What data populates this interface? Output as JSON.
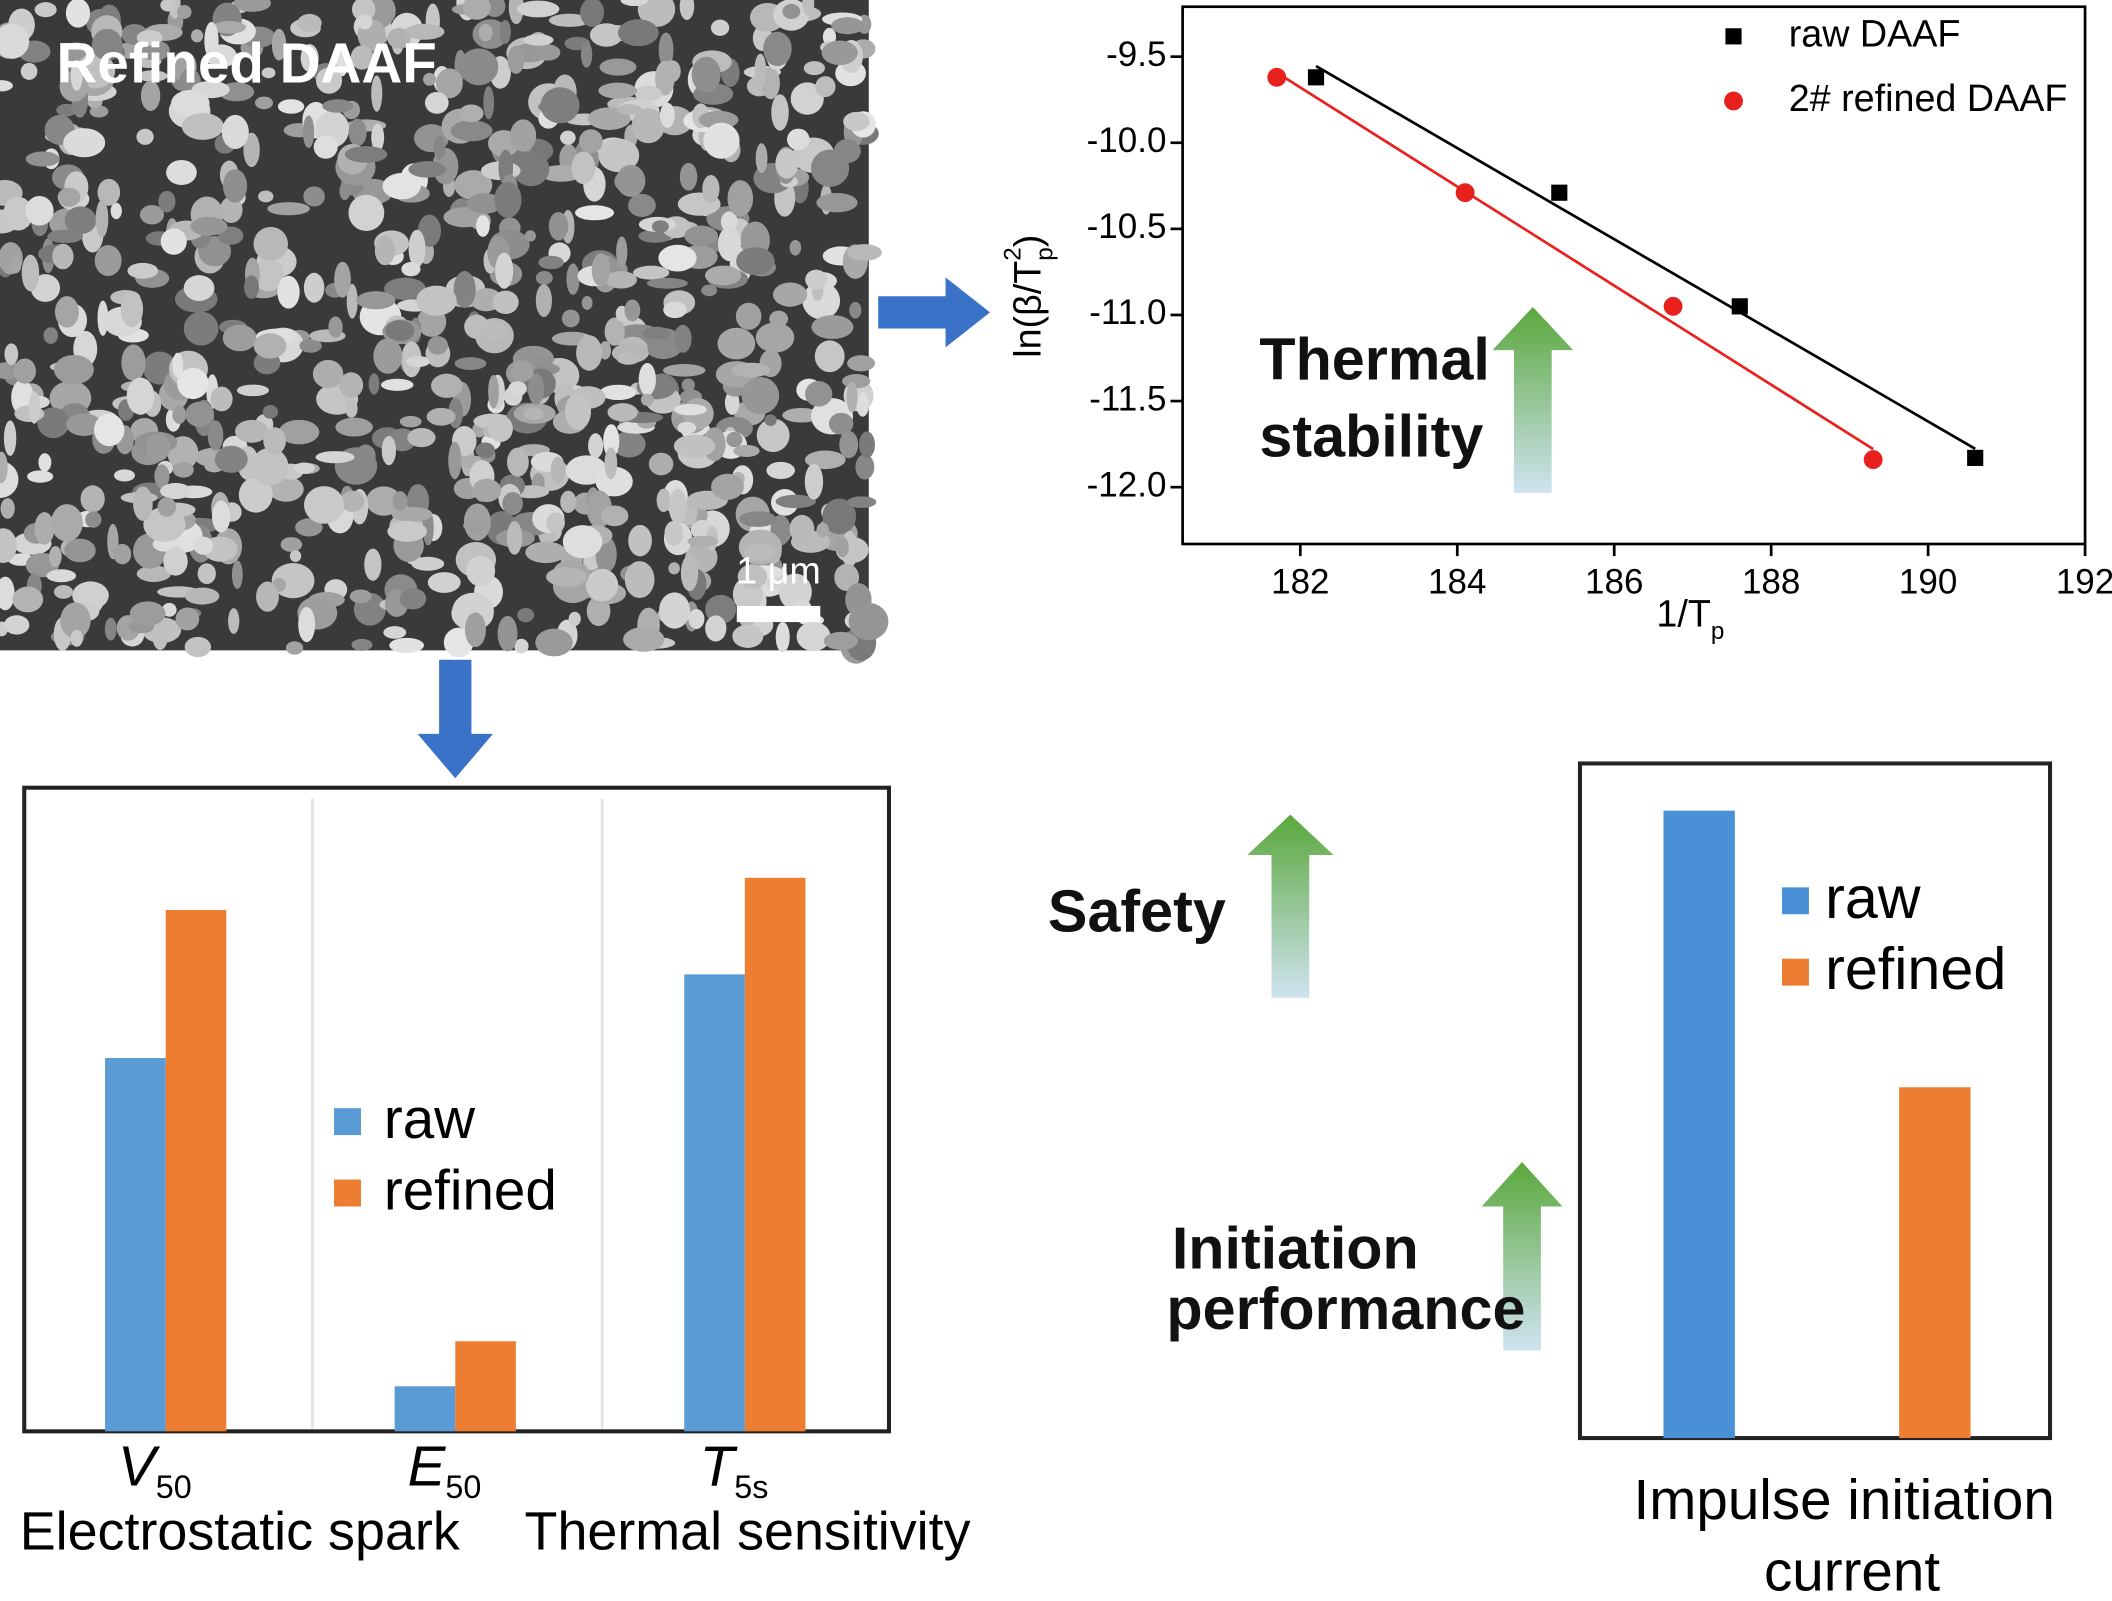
{
  "sem_image": {
    "label": "Refined DAAF",
    "scale_bar": "1 μm"
  },
  "annotations": {
    "thermal": "Thermal stability",
    "safety": "Safety",
    "initiation": "Initiation performance"
  },
  "chart_data": [
    {
      "type": "scatter",
      "fit": "linear",
      "xlabel": {
        "text": "1/T",
        "sub": "p"
      },
      "ylabel": {
        "text": "ln(β/T",
        "sup": "2",
        "sub": "p",
        "close": ")"
      },
      "xlim": [
        180.5,
        192
      ],
      "xticks": [
        182,
        184,
        186,
        188,
        190,
        192
      ],
      "ylim": [
        -12.33,
        -9.21
      ],
      "yticks": [
        -9.5,
        {
          "value": -10,
          "label": "-10.0"
        },
        -10.5,
        {
          "value": -11,
          "label": "-11.0"
        },
        -11.5,
        {
          "value": -12,
          "label": "-12.0"
        }
      ],
      "legend": "upper right",
      "series": [
        {
          "name": "raw DAAF",
          "color": "#000000",
          "marker": "square",
          "x": [
            182.2,
            185.3,
            187.6,
            190.6
          ],
          "values": [
            -9.62,
            -10.29,
            -10.95,
            -11.83
          ]
        },
        {
          "name": "2# refined DAAF",
          "color": "#e8201e",
          "marker": "circle",
          "x": [
            181.7,
            184.1,
            186.75,
            189.3
          ],
          "values": [
            -9.62,
            -10.29,
            -10.95,
            -11.84
          ]
        }
      ]
    },
    {
      "type": "bar",
      "categories": [
        "V",
        "E",
        "T"
      ],
      "category_subscripts": [
        "50",
        "50",
        "5s"
      ],
      "group_labels": [
        "Electrostatic spark",
        "Thermal sensitivity"
      ],
      "ylim": [
        0,
        100
      ],
      "series": [
        {
          "name": "raw",
          "color": "#5b9bd5",
          "values": [
            58,
            7,
            71
          ]
        },
        {
          "name": "refined",
          "color": "#ed7d31",
          "values": [
            81,
            14,
            86
          ]
        }
      ]
    },
    {
      "type": "bar",
      "categories": [
        "Impulse initiation current"
      ],
      "ylim": [
        0,
        100
      ],
      "series": [
        {
          "name": "raw",
          "color": "#4a90d6",
          "values": [
            93
          ]
        },
        {
          "name": "refined",
          "color": "#ed7d31",
          "values": [
            52
          ]
        }
      ]
    }
  ]
}
